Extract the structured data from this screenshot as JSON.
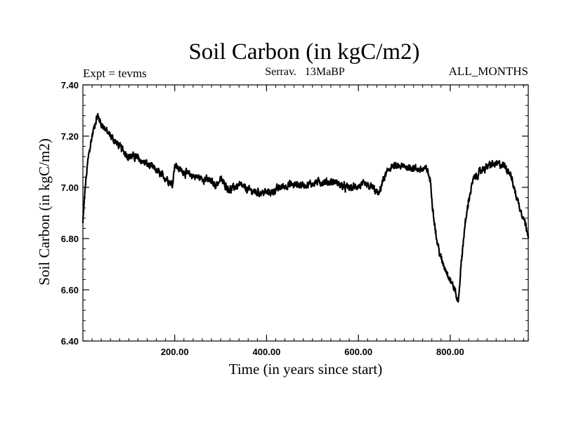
{
  "chart_data": {
    "type": "line",
    "title": "Soil Carbon (in kgC/m2)",
    "subtitle_left": "Expt = tevms",
    "subtitle_center": "Serrav.   13MaBP",
    "subtitle_right": "ALL_MONTHS",
    "xlabel": "Time (in years since start)",
    "ylabel": "Soil Carbon (in kgC/m2)",
    "xlim": [
      0,
      970
    ],
    "ylim": [
      6.4,
      7.4
    ],
    "x_ticks": [
      200,
      400,
      600,
      800
    ],
    "x_tick_labels": [
      "200.00",
      "400.00",
      "600.00",
      "800.00"
    ],
    "y_ticks": [
      6.4,
      6.6,
      6.8,
      7.0,
      7.2,
      7.4
    ],
    "y_tick_labels": [
      "6.40",
      "6.60",
      "6.80",
      "7.00",
      "7.20",
      "7.40"
    ],
    "series": [
      {
        "name": "Soil Carbon",
        "color": "#000000",
        "noise_amplitude": 0.012,
        "x": [
          0,
          5,
          12,
          20,
          28,
          32,
          40,
          55,
          70,
          85,
          100,
          115,
          130,
          150,
          170,
          185,
          195,
          200,
          210,
          230,
          250,
          270,
          290,
          300,
          310,
          320,
          340,
          360,
          380,
          395,
          410,
          430,
          450,
          470,
          490,
          510,
          530,
          550,
          570,
          590,
          610,
          630,
          645,
          650,
          660,
          670,
          690,
          710,
          730,
          750,
          757,
          762,
          770,
          780,
          790,
          800,
          810,
          815,
          818,
          822,
          830,
          840,
          850,
          860,
          870,
          880,
          890,
          900,
          910,
          920,
          930,
          940,
          950,
          960,
          970
        ],
        "y": [
          6.86,
          7.0,
          7.12,
          7.2,
          7.26,
          7.28,
          7.25,
          7.21,
          7.18,
          7.15,
          7.12,
          7.12,
          7.1,
          7.08,
          7.05,
          7.03,
          7.01,
          7.09,
          7.07,
          7.05,
          7.04,
          7.03,
          7.01,
          7.03,
          7.01,
          6.99,
          7.01,
          6.99,
          6.98,
          6.98,
          6.98,
          7.0,
          7.01,
          7.01,
          7.01,
          7.02,
          7.02,
          7.02,
          7.0,
          7.0,
          7.01,
          7.0,
          6.97,
          7.01,
          7.05,
          7.08,
          7.08,
          7.08,
          7.07,
          7.07,
          7.02,
          6.92,
          6.8,
          6.72,
          6.68,
          6.64,
          6.6,
          6.56,
          6.56,
          6.66,
          6.82,
          6.95,
          7.03,
          7.05,
          7.07,
          7.08,
          7.09,
          7.09,
          7.09,
          7.08,
          7.06,
          6.99,
          6.93,
          6.88,
          6.82
        ]
      }
    ]
  }
}
